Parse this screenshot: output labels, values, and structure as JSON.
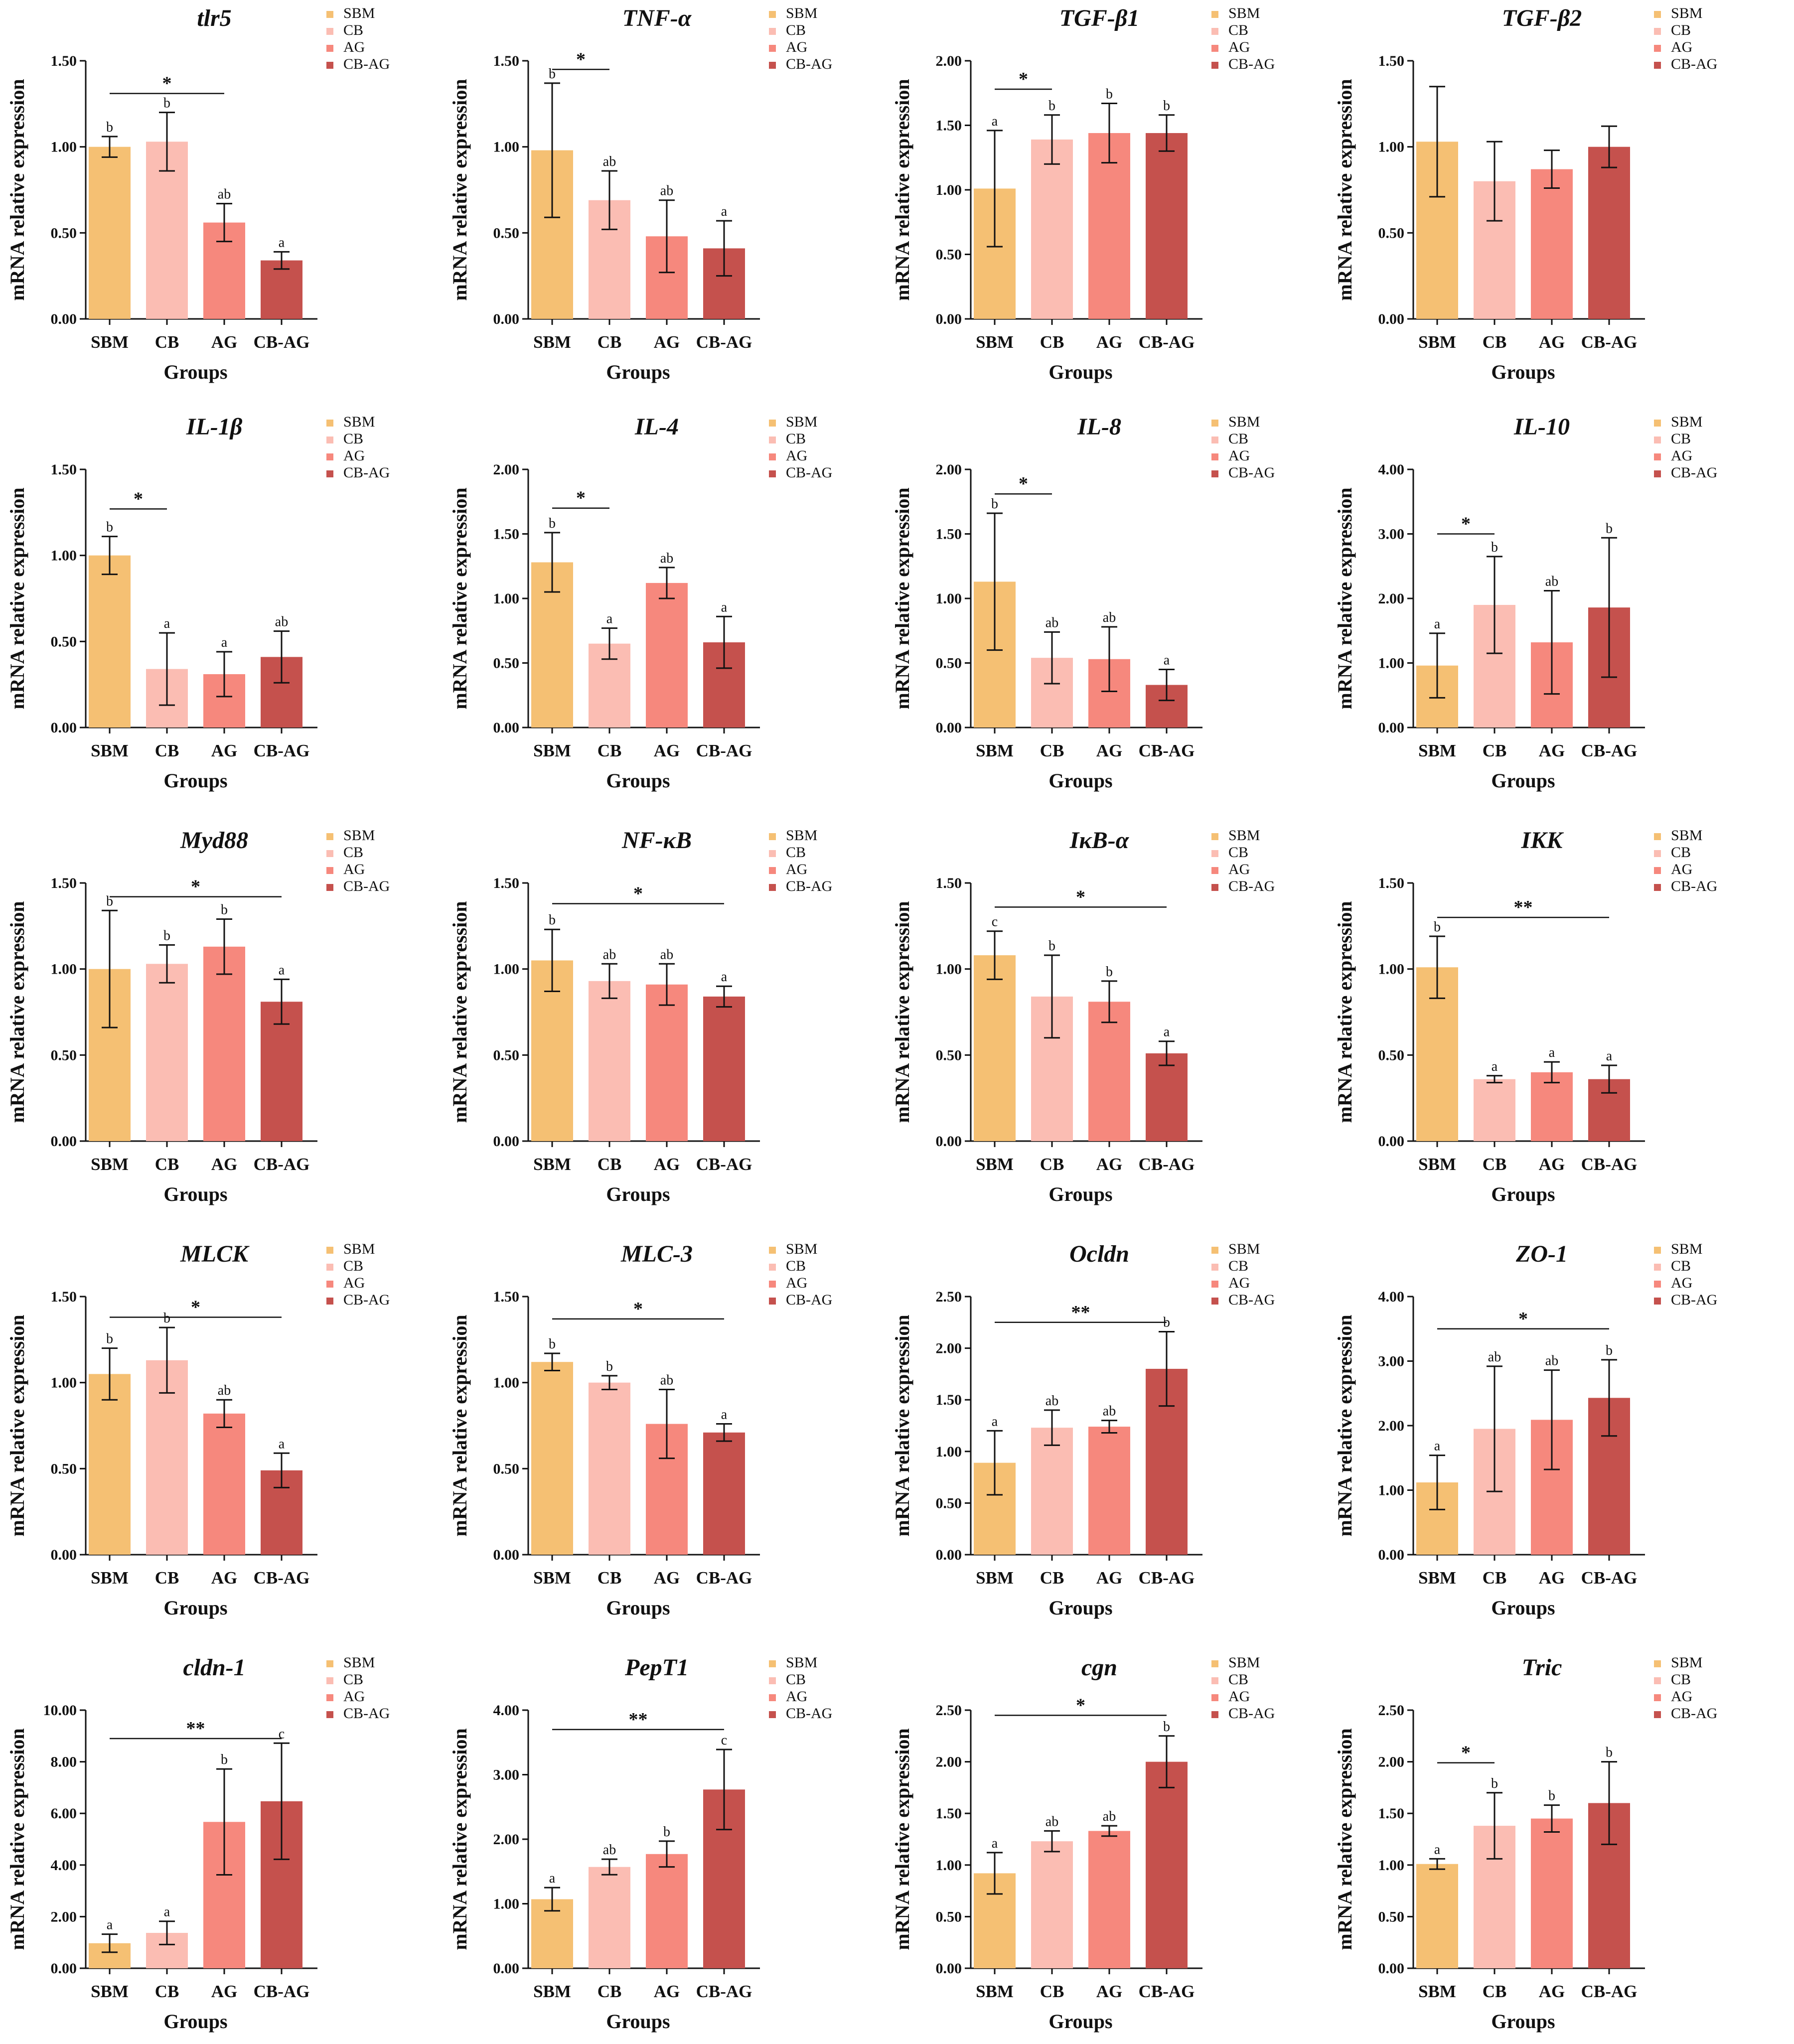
{
  "figure": {
    "colors": {
      "SBM": "#F5C073",
      "CB": "#FBBDB3",
      "AG": "#F6887D",
      "CB-AG": "#C5514D",
      "axis": "#111111"
    }
  },
  "chart_data": [
    {
      "type": "bar",
      "title": "tlr5",
      "xlabel": "Groups",
      "ylabel": "mRNA relative expression",
      "categories": [
        "SBM",
        "CB",
        "AG",
        "CB-AG"
      ],
      "values": [
        1.0,
        1.03,
        0.56,
        0.34
      ],
      "errors": [
        0.06,
        0.17,
        0.11,
        0.05
      ],
      "letters": [
        "b",
        "b",
        "ab",
        "a"
      ],
      "ylim": [
        0,
        1.5
      ],
      "yticks": [
        "0.00",
        "0.50",
        "1.00",
        "1.50"
      ],
      "significance": {
        "label": "*",
        "from": 0,
        "to": 2,
        "level": 1.31
      },
      "legend": [
        "SBM",
        "CB",
        "AG",
        "CB-AG"
      ]
    },
    {
      "type": "bar",
      "title": "TNF-α",
      "xlabel": "Groups",
      "ylabel": "mRNA relative expression",
      "categories": [
        "SBM",
        "CB",
        "AG",
        "CB-AG"
      ],
      "values": [
        0.98,
        0.69,
        0.48,
        0.41
      ],
      "errors": [
        0.39,
        0.17,
        0.21,
        0.16
      ],
      "letters": [
        "b",
        "ab",
        "ab",
        "a"
      ],
      "ylim": [
        0,
        1.5
      ],
      "yticks": [
        "0.00",
        "0.50",
        "1.00",
        "1.50"
      ],
      "significance": {
        "label": "*",
        "from": 0,
        "to": 1,
        "level": 1.45
      },
      "legend": [
        "SBM",
        "CB",
        "AG",
        "CB-AG"
      ]
    },
    {
      "type": "bar",
      "title": "TGF-β1",
      "xlabel": "Groups",
      "ylabel": "mRNA relative expression",
      "categories": [
        "SBM",
        "CB",
        "AG",
        "CB-AG"
      ],
      "values": [
        1.01,
        1.39,
        1.44,
        1.44
      ],
      "errors": [
        0.45,
        0.19,
        0.23,
        0.14
      ],
      "letters": [
        "a",
        "b",
        "b",
        "b"
      ],
      "ylim": [
        0,
        2.0
      ],
      "yticks": [
        "0.00",
        "0.50",
        "1.00",
        "1.50",
        "2.00"
      ],
      "significance": {
        "label": "*",
        "from": 0,
        "to": 1,
        "level": 1.78
      },
      "legend": [
        "SBM",
        "CB",
        "AG",
        "CB-AG"
      ]
    },
    {
      "type": "bar",
      "title": "TGF-β2",
      "xlabel": "Groups",
      "ylabel": "mRNA relative expression",
      "categories": [
        "SBM",
        "CB",
        "AG",
        "CB-AG"
      ],
      "values": [
        1.03,
        0.8,
        0.87,
        1.0
      ],
      "errors": [
        0.32,
        0.23,
        0.11,
        0.12
      ],
      "letters": [
        "",
        "",
        "",
        ""
      ],
      "ylim": [
        0,
        1.5
      ],
      "yticks": [
        "0.00",
        "0.50",
        "1.00",
        "1.50"
      ],
      "significance": null,
      "legend": [
        "SBM",
        "CB",
        "AG",
        "CB-AG"
      ]
    },
    {
      "type": "bar",
      "title": "IL-1β",
      "xlabel": "Groups",
      "ylabel": "mRNA relative expression",
      "categories": [
        "SBM",
        "CB",
        "AG",
        "CB-AG"
      ],
      "values": [
        1.0,
        0.34,
        0.31,
        0.41
      ],
      "errors": [
        0.11,
        0.21,
        0.13,
        0.15
      ],
      "letters": [
        "b",
        "a",
        "a",
        "ab"
      ],
      "ylim": [
        0,
        1.5
      ],
      "yticks": [
        "0.00",
        "0.50",
        "1.00",
        "1.50"
      ],
      "significance": {
        "label": "*",
        "from": 0,
        "to": 1,
        "level": 1.27
      },
      "legend": [
        "SBM",
        "CB",
        "AG",
        "CB-AG"
      ]
    },
    {
      "type": "bar",
      "title": "IL-4",
      "xlabel": "Groups",
      "ylabel": "mRNA relative expression",
      "categories": [
        "SBM",
        "CB",
        "AG",
        "CB-AG"
      ],
      "values": [
        1.28,
        0.65,
        1.12,
        0.66
      ],
      "errors": [
        0.23,
        0.12,
        0.12,
        0.2
      ],
      "letters": [
        "b",
        "a",
        "ab",
        "a"
      ],
      "ylim": [
        0,
        2.0
      ],
      "yticks": [
        "0.00",
        "0.50",
        "1.00",
        "1.50",
        "2.00"
      ],
      "significance": {
        "label": "*",
        "from": 0,
        "to": 1,
        "level": 1.7
      },
      "legend": [
        "SBM",
        "CB",
        "AG",
        "CB-AG"
      ]
    },
    {
      "type": "bar",
      "title": "IL-8",
      "xlabel": "Groups",
      "ylabel": "mRNA relative expression",
      "categories": [
        "SBM",
        "CB",
        "AG",
        "CB-AG"
      ],
      "values": [
        1.13,
        0.54,
        0.53,
        0.33
      ],
      "errors": [
        0.53,
        0.2,
        0.25,
        0.12
      ],
      "letters": [
        "b",
        "ab",
        "ab",
        "a"
      ],
      "ylim": [
        0,
        2.0
      ],
      "yticks": [
        "0.00",
        "0.50",
        "1.00",
        "1.50",
        "2.00"
      ],
      "significance": {
        "label": "*",
        "from": 0,
        "to": 1,
        "level": 1.81
      },
      "legend": [
        "SBM",
        "CB",
        "AG",
        "CB-AG"
      ]
    },
    {
      "type": "bar",
      "title": "IL-10",
      "xlabel": "Groups",
      "ylabel": "mRNA relative expression",
      "categories": [
        "SBM",
        "CB",
        "AG",
        "CB-AG"
      ],
      "values": [
        0.96,
        1.9,
        1.32,
        1.86
      ],
      "errors": [
        0.5,
        0.75,
        0.8,
        1.08
      ],
      "letters": [
        "a",
        "b",
        "ab",
        "b"
      ],
      "ylim": [
        0,
        4.0
      ],
      "yticks": [
        "0.00",
        "1.00",
        "2.00",
        "3.00",
        "4.00"
      ],
      "significance": {
        "label": "*",
        "from": 0,
        "to": 1,
        "level": 3.0
      },
      "legend": [
        "SBM",
        "CB",
        "AG",
        "CB-AG"
      ]
    },
    {
      "type": "bar",
      "title": "Myd88",
      "xlabel": "Groups",
      "ylabel": "mRNA relative expression",
      "categories": [
        "SBM",
        "CB",
        "AG",
        "CB-AG"
      ],
      "values": [
        1.0,
        1.03,
        1.13,
        0.81
      ],
      "errors": [
        0.34,
        0.11,
        0.16,
        0.13
      ],
      "letters": [
        "b",
        "b",
        "b",
        "a"
      ],
      "ylim": [
        0,
        1.5
      ],
      "yticks": [
        "0.00",
        "0.50",
        "1.00",
        "1.50"
      ],
      "significance": {
        "label": "*",
        "from": 0,
        "to": 3,
        "level": 1.42
      },
      "legend": [
        "SBM",
        "CB",
        "AG",
        "CB-AG"
      ]
    },
    {
      "type": "bar",
      "title": "NF-κB",
      "xlabel": "Groups",
      "ylabel": "mRNA relative expression",
      "categories": [
        "SBM",
        "CB",
        "AG",
        "CB-AG"
      ],
      "values": [
        1.05,
        0.93,
        0.91,
        0.84
      ],
      "errors": [
        0.18,
        0.1,
        0.12,
        0.06
      ],
      "letters": [
        "b",
        "ab",
        "ab",
        "a"
      ],
      "ylim": [
        0,
        1.5
      ],
      "yticks": [
        "0.00",
        "0.50",
        "1.00",
        "1.50"
      ],
      "significance": {
        "label": "*",
        "from": 0,
        "to": 3,
        "level": 1.38
      },
      "legend": [
        "SBM",
        "CB",
        "AG",
        "CB-AG"
      ]
    },
    {
      "type": "bar",
      "title": "IκB-α",
      "xlabel": "Groups",
      "ylabel": "mRNA relative expression",
      "categories": [
        "SBM",
        "CB",
        "AG",
        "CB-AG"
      ],
      "values": [
        1.08,
        0.84,
        0.81,
        0.51
      ],
      "errors": [
        0.14,
        0.24,
        0.12,
        0.07
      ],
      "letters": [
        "c",
        "b",
        "b",
        "a"
      ],
      "ylim": [
        0,
        1.5
      ],
      "yticks": [
        "0.00",
        "0.50",
        "1.00",
        "1.50"
      ],
      "significance": {
        "label": "*",
        "from": 0,
        "to": 3,
        "level": 1.36
      },
      "legend": [
        "SBM",
        "CB",
        "AG",
        "CB-AG"
      ]
    },
    {
      "type": "bar",
      "title": "IKK",
      "xlabel": "Groups",
      "ylabel": "mRNA relative expression",
      "categories": [
        "SBM",
        "CB",
        "AG",
        "CB-AG"
      ],
      "values": [
        1.01,
        0.36,
        0.4,
        0.36
      ],
      "errors": [
        0.18,
        0.02,
        0.06,
        0.08
      ],
      "letters": [
        "b",
        "a",
        "a",
        "a"
      ],
      "ylim": [
        0,
        1.5
      ],
      "yticks": [
        "0.00",
        "0.50",
        "1.00",
        "1.50"
      ],
      "significance": {
        "label": "**",
        "from": 0,
        "to": 3,
        "level": 1.3
      },
      "legend": [
        "SBM",
        "CB",
        "AG",
        "CB-AG"
      ]
    },
    {
      "type": "bar",
      "title": "MLCK",
      "xlabel": "Groups",
      "ylabel": "mRNA relative expression",
      "categories": [
        "SBM",
        "CB",
        "AG",
        "CB-AG"
      ],
      "values": [
        1.05,
        1.13,
        0.82,
        0.49
      ],
      "errors": [
        0.15,
        0.19,
        0.08,
        0.1
      ],
      "letters": [
        "b",
        "b",
        "ab",
        "a"
      ],
      "ylim": [
        0,
        1.5
      ],
      "yticks": [
        "0.00",
        "0.50",
        "1.00",
        "1.50"
      ],
      "significance": {
        "label": "*",
        "from": 0,
        "to": 3,
        "level": 1.38
      },
      "legend": [
        "SBM",
        "CB",
        "AG",
        "CB-AG"
      ]
    },
    {
      "type": "bar",
      "title": "MLC-3",
      "xlabel": "Groups",
      "ylabel": "mRNA relative expression",
      "categories": [
        "SBM",
        "CB",
        "AG",
        "CB-AG"
      ],
      "values": [
        1.12,
        1.0,
        0.76,
        0.71
      ],
      "errors": [
        0.05,
        0.04,
        0.2,
        0.05
      ],
      "letters": [
        "b",
        "b",
        "ab",
        "a"
      ],
      "ylim": [
        0,
        1.5
      ],
      "yticks": [
        "0.00",
        "0.50",
        "1.00",
        "1.50"
      ],
      "significance": {
        "label": "*",
        "from": 0,
        "to": 3,
        "level": 1.37
      },
      "legend": [
        "SBM",
        "CB",
        "AG",
        "CB-AG"
      ]
    },
    {
      "type": "bar",
      "title": "Ocldn",
      "xlabel": "Groups",
      "ylabel": "mRNA relative expression",
      "categories": [
        "SBM",
        "CB",
        "AG",
        "CB-AG"
      ],
      "values": [
        0.89,
        1.23,
        1.24,
        1.8
      ],
      "errors": [
        0.31,
        0.17,
        0.06,
        0.36
      ],
      "letters": [
        "a",
        "ab",
        "ab",
        "b"
      ],
      "ylim": [
        0,
        2.5
      ],
      "yticks": [
        "0.00",
        "0.50",
        "1.00",
        "1.50",
        "2.00",
        "2.50"
      ],
      "significance": {
        "label": "**",
        "from": 0,
        "to": 3,
        "level": 2.25
      },
      "legend": [
        "SBM",
        "CB",
        "AG",
        "CB-AG"
      ]
    },
    {
      "type": "bar",
      "title": "ZO-1",
      "xlabel": "Groups",
      "ylabel": "mRNA relative expression",
      "categories": [
        "SBM",
        "CB",
        "AG",
        "CB-AG"
      ],
      "values": [
        1.12,
        1.95,
        2.09,
        2.43
      ],
      "errors": [
        0.42,
        0.97,
        0.77,
        0.59
      ],
      "letters": [
        "a",
        "ab",
        "ab",
        "b"
      ],
      "ylim": [
        0,
        4.0
      ],
      "yticks": [
        "0.00",
        "1.00",
        "2.00",
        "3.00",
        "4.00"
      ],
      "significance": {
        "label": "*",
        "from": 0,
        "to": 3,
        "level": 3.5
      },
      "legend": [
        "SBM",
        "CB",
        "AG",
        "CB-AG"
      ]
    },
    {
      "type": "bar",
      "title": "cldn-1",
      "xlabel": "Groups",
      "ylabel": "mRNA relative expression",
      "categories": [
        "SBM",
        "CB",
        "AG",
        "CB-AG"
      ],
      "values": [
        0.97,
        1.37,
        5.67,
        6.47
      ],
      "errors": [
        0.35,
        0.45,
        2.05,
        2.25
      ],
      "letters": [
        "a",
        "a",
        "b",
        "c"
      ],
      "ylim": [
        0,
        10.0
      ],
      "yticks": [
        "0.00",
        "2.00",
        "4.00",
        "6.00",
        "8.00",
        "10.00"
      ],
      "significance": {
        "label": "**",
        "from": 0,
        "to": 3,
        "level": 8.9
      },
      "legend": [
        "SBM",
        "CB",
        "AG",
        "CB-AG"
      ]
    },
    {
      "type": "bar",
      "title": "PepT1",
      "xlabel": "Groups",
      "ylabel": "mRNA relative expression",
      "categories": [
        "SBM",
        "CB",
        "AG",
        "CB-AG"
      ],
      "values": [
        1.07,
        1.57,
        1.77,
        2.77
      ],
      "errors": [
        0.18,
        0.12,
        0.2,
        0.62
      ],
      "letters": [
        "a",
        "ab",
        "b",
        "c"
      ],
      "ylim": [
        0,
        4.0
      ],
      "yticks": [
        "0.00",
        "1.00",
        "2.00",
        "3.00",
        "4.00"
      ],
      "significance": {
        "label": "**",
        "from": 0,
        "to": 3,
        "level": 3.7
      },
      "legend": [
        "SBM",
        "CB",
        "AG",
        "CB-AG"
      ]
    },
    {
      "type": "bar",
      "title": "cgn",
      "xlabel": "Groups",
      "ylabel": "mRNA relative expression",
      "categories": [
        "SBM",
        "CB",
        "AG",
        "CB-AG"
      ],
      "values": [
        0.92,
        1.23,
        1.33,
        2.0
      ],
      "errors": [
        0.2,
        0.1,
        0.05,
        0.25
      ],
      "letters": [
        "a",
        "ab",
        "ab",
        "b"
      ],
      "ylim": [
        0,
        2.5
      ],
      "yticks": [
        "0.00",
        "0.50",
        "1.00",
        "1.50",
        "2.00",
        "2.50"
      ],
      "significance": {
        "label": "*",
        "from": 0,
        "to": 3,
        "level": 2.45
      },
      "legend": [
        "SBM",
        "CB",
        "AG",
        "CB-AG"
      ]
    },
    {
      "type": "bar",
      "title": "Tric",
      "xlabel": "Groups",
      "ylabel": "mRNA relative expression",
      "categories": [
        "SBM",
        "CB",
        "AG",
        "CB-AG"
      ],
      "values": [
        1.01,
        1.38,
        1.45,
        1.6
      ],
      "errors": [
        0.05,
        0.32,
        0.13,
        0.4
      ],
      "letters": [
        "a",
        "b",
        "b",
        "b"
      ],
      "ylim": [
        0,
        2.5
      ],
      "yticks": [
        "0.00",
        "0.50",
        "1.00",
        "1.50",
        "2.00",
        "2.50"
      ],
      "significance": {
        "label": "*",
        "from": 0,
        "to": 1,
        "level": 1.99
      },
      "legend": [
        "SBM",
        "CB",
        "AG",
        "CB-AG"
      ]
    }
  ]
}
